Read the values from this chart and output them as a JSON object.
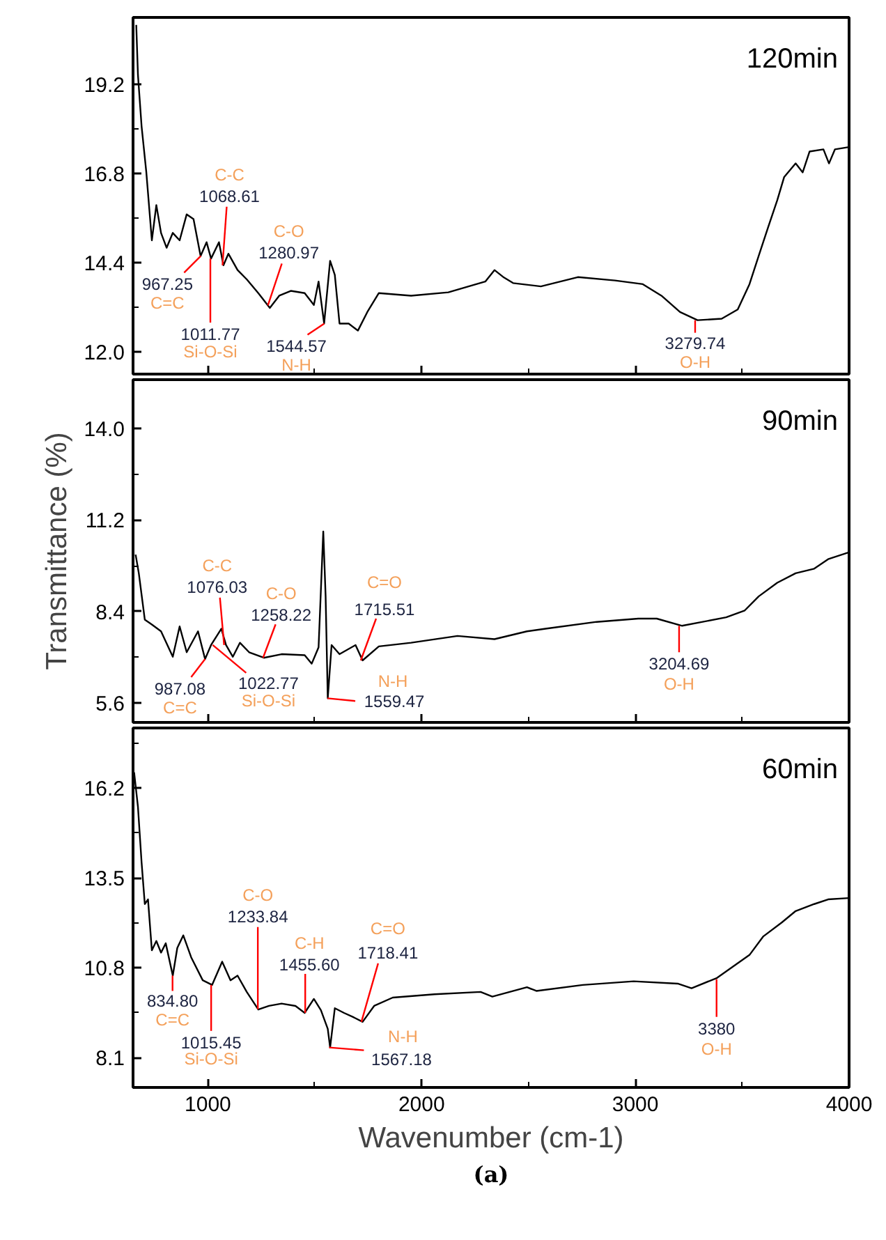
{
  "chart_data": [
    {
      "type": "line",
      "title": "120min",
      "xlim": [
        650,
        4000
      ],
      "ylim": [
        11.4,
        21.0
      ],
      "tick_labels": "y",
      "xticks": [
        1000,
        {
          "value": 1500,
          "label": null
        },
        2000,
        {
          "value": 2500,
          "label": null
        },
        3000,
        {
          "value": 3500,
          "label": null
        },
        4000
      ],
      "yticks": [
        {
          "value": 12.0,
          "label": "12.0"
        },
        {
          "value": 13.2,
          "label": null
        },
        14.4,
        {
          "value": 15.6,
          "label": null
        },
        16.8,
        {
          "value": 18.0,
          "label": null
        },
        19.2
      ],
      "x": [
        665,
        673,
        690,
        712,
        738,
        759,
        781,
        807,
        836,
        868,
        901,
        933,
        966,
        994,
        1015,
        1052,
        1073,
        1096,
        1139,
        1182,
        1236,
        1290,
        1334,
        1388,
        1453,
        1496,
        1518,
        1544,
        1572,
        1594,
        1616,
        1659,
        1702,
        1746,
        1800,
        1951,
        2125,
        2298,
        2341,
        2385,
        2428,
        2558,
        2731,
        2905,
        3035,
        3122,
        3209,
        3291,
        3404,
        3479,
        3534,
        3577,
        3620,
        3664,
        3696,
        3750,
        3783,
        3815,
        3880,
        3906,
        3934,
        3999
      ],
      "series": [
        {
          "color": "#000000",
          "values": [
            20.8,
            19.45,
            18.07,
            16.84,
            15.0,
            15.95,
            15.2,
            14.8,
            15.2,
            15.0,
            15.7,
            15.57,
            14.58,
            14.95,
            14.51,
            14.95,
            14.33,
            14.64,
            14.2,
            13.95,
            13.58,
            13.18,
            13.51,
            13.64,
            13.58,
            13.26,
            13.89,
            12.76,
            14.45,
            14.07,
            12.76,
            12.76,
            12.57,
            13.07,
            13.58,
            13.51,
            13.6,
            13.89,
            14.2,
            14.0,
            13.85,
            13.76,
            14.01,
            13.92,
            13.82,
            13.51,
            13.07,
            12.85,
            12.89,
            13.14,
            13.82,
            14.58,
            15.33,
            16.08,
            16.7,
            17.07,
            16.83,
            17.39,
            17.45,
            17.07,
            17.45,
            17.51
          ]
        }
      ],
      "annotations": [
        {
          "text": "967.25",
          "x": 967.25,
          "y": 14.58
        },
        "C=C",
        {
          "text": "1011.77",
          "x": 1011.77,
          "y": 14.51
        },
        "Si-O-Si",
        {
          "text": "1068.61",
          "x": 1068.61,
          "y": 14.33
        },
        "C-C",
        {
          "text": "1280.97",
          "x": 1280.97,
          "y": 13.25
        },
        "C-O",
        {
          "text": "1544.57",
          "x": 1544.57,
          "y": 12.76
        },
        "N-H",
        {
          "text": "3279.74",
          "x": 3279.74,
          "y": 12.85
        },
        "O-H"
      ]
    },
    {
      "type": "line",
      "title": "90min",
      "ylabel": "Transmittance (%)",
      "xlim": [
        650,
        4000
      ],
      "ylim": [
        5.0,
        15.5
      ],
      "tick_labels": "y",
      "xticks": [
        1000,
        {
          "value": 1500,
          "label": null
        },
        2000,
        {
          "value": 2500,
          "label": null
        },
        3000,
        {
          "value": 3500,
          "label": null
        },
        4000
      ],
      "yticks": [
        5.6,
        {
          "value": 7.0,
          "label": null
        },
        8.4,
        {
          "value": 9.8,
          "label": null
        },
        11.2,
        {
          "value": 12.6,
          "label": null
        },
        {
          "value": 14.0,
          "label": "14.0"
        }
      ],
      "x": [
        662,
        677,
        705,
        738,
        781,
        836,
        868,
        901,
        954,
        987,
        1015,
        1063,
        1085,
        1117,
        1150,
        1193,
        1262,
        1345,
        1453,
        1486,
        1518,
        1540,
        1551,
        1561,
        1579,
        1616,
        1691,
        1724,
        1800,
        1951,
        2168,
        2341,
        2493,
        2580,
        2819,
        3014,
        3100,
        3219,
        3425,
        3512,
        3577,
        3664,
        3750,
        3837,
        3902,
        3999
      ],
      "series": [
        {
          "color": "#000000",
          "values": [
            10.14,
            9.57,
            8.15,
            8.0,
            7.79,
            7.01,
            7.94,
            7.15,
            7.79,
            6.94,
            7.37,
            7.87,
            7.37,
            7.01,
            7.44,
            7.15,
            6.98,
            7.09,
            7.06,
            6.8,
            7.3,
            10.85,
            8.86,
            5.74,
            7.37,
            7.09,
            7.37,
            6.9,
            7.33,
            7.44,
            7.65,
            7.55,
            7.79,
            7.87,
            8.08,
            8.18,
            8.18,
            7.96,
            8.22,
            8.43,
            8.86,
            9.28,
            9.57,
            9.71,
            10.0,
            10.21
          ]
        }
      ],
      "annotations": [
        {
          "text": "987.08",
          "x": 987.08,
          "y": 6.94
        },
        "C=C",
        {
          "text": "1022.77",
          "x": 1022.77,
          "y": 7.37
        },
        "Si-O-Si",
        {
          "text": "1076.03",
          "x": 1076.03,
          "y": 7.37
        },
        "C-C",
        {
          "text": "1258.22",
          "x": 1258.22,
          "y": 6.98
        },
        "C-O",
        {
          "text": "1559.47",
          "x": 1559.47,
          "y": 5.74
        },
        "N-H",
        {
          "text": "1715.51",
          "x": 1715.51,
          "y": 6.9
        },
        "C=O",
        {
          "text": "3204.69",
          "x": 3204.69,
          "y": 7.96
        },
        "O-H"
      ]
    },
    {
      "type": "line",
      "title": "60min",
      "xlabel": "Wavenumber (cm-1)",
      "xlim": [
        650,
        4000
      ],
      "ylim": [
        7.2,
        18.0
      ],
      "xticks": [
        1000,
        {
          "value": 1500,
          "label": null
        },
        2000,
        {
          "value": 2500,
          "label": null
        },
        3000,
        {
          "value": 3500,
          "label": null
        },
        4000
      ],
      "yticks": [
        8.1,
        {
          "value": 9.45,
          "label": null
        },
        10.8,
        {
          "value": 12.15,
          "label": null
        },
        13.5,
        {
          "value": 14.85,
          "label": null
        },
        16.2,
        {
          "value": 17.55,
          "label": null
        }
      ],
      "x": [
        655,
        673,
        690,
        705,
        720,
        738,
        759,
        781,
        803,
        836,
        857,
        885,
        922,
        976,
        1020,
        1067,
        1106,
        1139,
        1182,
        1236,
        1286,
        1345,
        1410,
        1453,
        1496,
        1529,
        1561,
        1572,
        1594,
        1637,
        1681,
        1724,
        1778,
        1865,
        2060,
        2276,
        2331,
        2493,
        2537,
        2754,
        2992,
        3198,
        3263,
        3382,
        3534,
        3599,
        3686,
        3750,
        3837,
        3902,
        3999
      ],
      "series": [
        {
          "color": "#000000",
          "values": [
            16.67,
            15.63,
            13.96,
            12.71,
            12.85,
            11.32,
            11.6,
            11.25,
            11.53,
            10.56,
            11.39,
            11.77,
            11.11,
            10.42,
            10.28,
            10.98,
            10.42,
            10.56,
            10.07,
            9.54,
            9.65,
            9.72,
            9.65,
            9.44,
            9.86,
            9.52,
            8.96,
            8.4,
            9.58,
            9.44,
            9.31,
            9.17,
            9.65,
            9.9,
            10.0,
            10.07,
            9.93,
            10.21,
            10.1,
            10.28,
            10.39,
            10.32,
            10.18,
            10.49,
            11.18,
            11.74,
            12.16,
            12.5,
            12.71,
            12.85,
            12.89
          ]
        }
      ],
      "annotations": [
        {
          "text": "834.80",
          "x": 834.8,
          "y": 10.56
        },
        "C=C",
        {
          "text": "1015.45",
          "x": 1015.45,
          "y": 10.28
        },
        "Si-O-Si",
        {
          "text": "1233.84",
          "x": 1233.84,
          "y": 9.55
        },
        "C-O",
        {
          "text": "1455.60",
          "x": 1455.6,
          "y": 9.44
        },
        "C-H",
        {
          "text": "1567.18",
          "x": 1567.18,
          "y": 8.4
        },
        "N-H",
        {
          "text": "1718.41",
          "x": 1718.41,
          "y": 9.17
        },
        "C=O",
        {
          "text": "3380",
          "x": 3380,
          "y": 10.45
        },
        "O-H",
        "(a)"
      ]
    }
  ]
}
